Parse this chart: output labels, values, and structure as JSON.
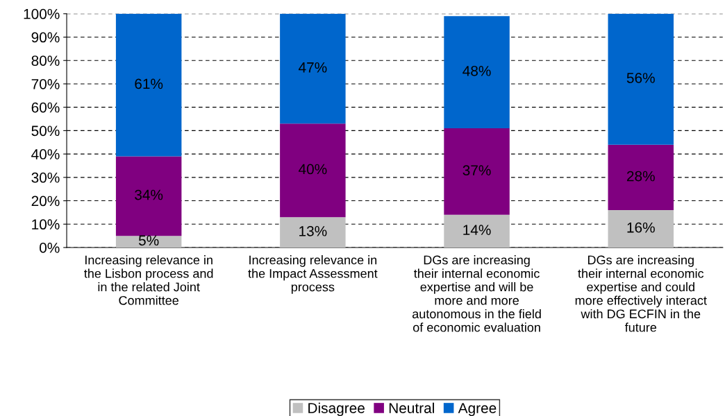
{
  "chart_data": {
    "type": "bar",
    "stacked": true,
    "categories": [
      "Increasing relevance in\nthe Lisbon process and\nin the related Joint\nCommittee",
      "Increasing relevance in\nthe Impact Assessment\nprocess",
      "DGs are increasing\ntheir internal economic\nexpertise and will be\nmore and more\nautonomous in the field\nof economic evaluation",
      "DGs are increasing\ntheir internal economic\nexpertise and could\nmore effectively interact\nwith DG ECFIN in the\nfuture"
    ],
    "series": [
      {
        "name": "Disagree",
        "color": "#c0c0c0",
        "values": [
          5,
          13,
          14,
          16
        ],
        "value_labels": [
          "5%",
          "13%",
          "14%",
          "16%"
        ]
      },
      {
        "name": "Neutral",
        "color": "#800080",
        "values": [
          34,
          40,
          37,
          28
        ],
        "value_labels": [
          "34%",
          "40%",
          "37%",
          "28%"
        ]
      },
      {
        "name": "Agree",
        "color": "#0066cc",
        "values": [
          61,
          47,
          48,
          56
        ],
        "value_labels": [
          "61%",
          "47%",
          "48%",
          "56%"
        ]
      }
    ],
    "ylim": [
      0,
      100
    ],
    "yticks": [
      {
        "value": 0,
        "label": "0%"
      },
      {
        "value": 10,
        "label": "10%"
      },
      {
        "value": 20,
        "label": "20%"
      },
      {
        "value": 30,
        "label": "30%"
      },
      {
        "value": 40,
        "label": "40%"
      },
      {
        "value": 50,
        "label": "50%"
      },
      {
        "value": 60,
        "label": "60%"
      },
      {
        "value": 70,
        "label": "70%"
      },
      {
        "value": 80,
        "label": "80%"
      },
      {
        "value": 90,
        "label": "90%"
      },
      {
        "value": 100,
        "label": "100%"
      }
    ],
    "grid": "y",
    "line_style": "dashed",
    "legend": "bottom"
  }
}
